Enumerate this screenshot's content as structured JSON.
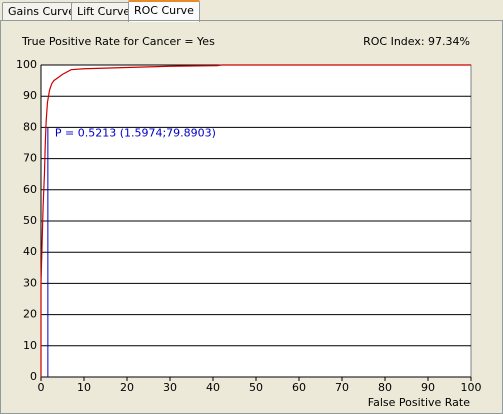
{
  "tabs": [
    "Gains Curve",
    "Lift Curve",
    "ROC Curve"
  ],
  "active_tab": 2,
  "chart_data": {
    "type": "line",
    "title": "True Positive Rate for Cancer = Yes",
    "subtitle": "ROC Index: 97.34%",
    "x_label": "False Positive Rate",
    "xlim": [
      0,
      100
    ],
    "ylim": [
      0,
      100
    ],
    "xticks": [
      0,
      10,
      20,
      30,
      40,
      50,
      60,
      70,
      80,
      90,
      100
    ],
    "yticks": [
      0,
      10,
      20,
      30,
      40,
      50,
      60,
      70,
      80,
      90,
      100
    ],
    "grid": true,
    "x": [
      0,
      0,
      0.3,
      0.5,
      0.8,
      1,
      1.2,
      1.5,
      2,
      2.5,
      3,
      4,
      5,
      7,
      10,
      20,
      30,
      41,
      42,
      100
    ],
    "series": [
      {
        "color": "#cc0000",
        "values": [
          0,
          30,
          45,
          55,
          65,
          75,
          82,
          88,
          92,
          94,
          95,
          96,
          97,
          98.5,
          98.8,
          99.2,
          99.6,
          99.8,
          100,
          100
        ]
      }
    ],
    "marker": {
      "x": 1.5974,
      "y": 79.8903,
      "color": "#0000cc",
      "label": "P = 0.5213 (1.5974;79.8903)"
    }
  }
}
